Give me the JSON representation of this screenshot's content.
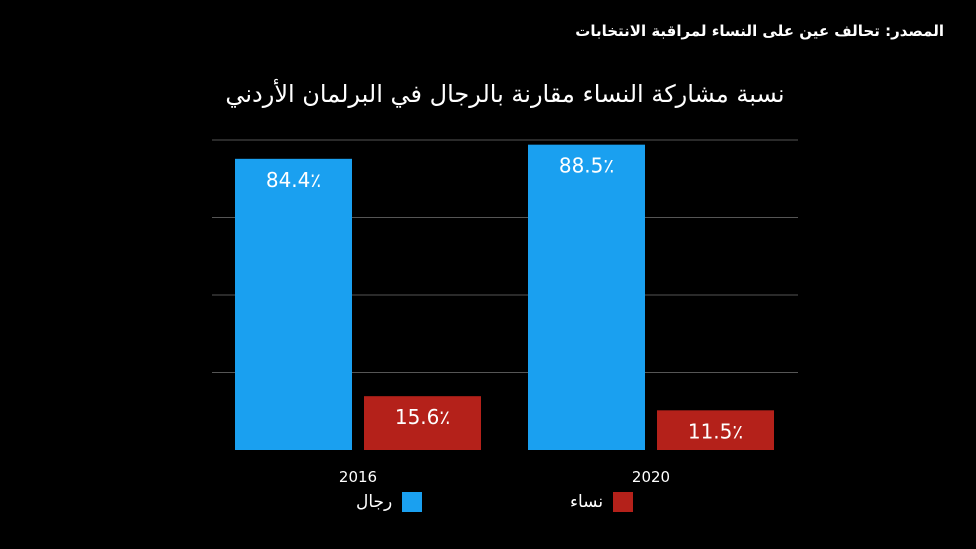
{
  "source": "المصدر: تحالف عين على النساء لمراقبة الانتخابات",
  "chart_data": {
    "type": "bar",
    "title": "نسبة مشاركة النساء مقارنة بالرجال في البرلمان الأردني",
    "categories": [
      "2016",
      "2020"
    ],
    "series": [
      {
        "name": "رجال",
        "values": [
          84.4,
          88.5
        ],
        "labels": [
          "84.4٪",
          "88.5٪"
        ],
        "color": "#1aa0f0"
      },
      {
        "name": "نساء",
        "values": [
          15.6,
          11.5
        ],
        "labels": [
          "15.6٪",
          "11.5٪"
        ],
        "color": "#b4211a"
      }
    ],
    "ylim": [
      0,
      100
    ],
    "grid": true,
    "legend_position": "bottom"
  }
}
